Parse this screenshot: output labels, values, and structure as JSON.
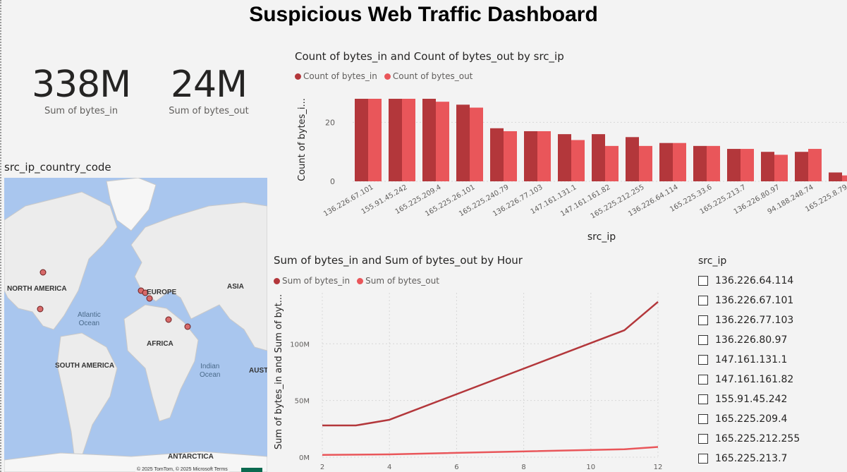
{
  "title": "Suspicious Web Traffic Dashboard",
  "kpis": [
    {
      "value": "338M",
      "label": "Sum of bytes_in"
    },
    {
      "value": "24M",
      "label": "Sum of bytes_out"
    }
  ],
  "map": {
    "title": "src_ip_country_code",
    "labels": {
      "north_america": "NORTH AMERICA",
      "europe": "EUROPE",
      "asia": "ASIA",
      "africa": "AFRICA",
      "south_america": "SOUTH AMERICA",
      "antarctica": "ANTARCTICA",
      "australia_partial": "AUST",
      "atlantic": "Atlantic",
      "atlantic_2": "Ocean",
      "indian": "Indian",
      "indian_2": "Ocean"
    },
    "copyright": "© 2025 TomTom, © 2025 Microsoft  Terms"
  },
  "colors": {
    "bytes_in": "#b3373b",
    "bytes_out": "#e9565a",
    "grid": "#d8d8d8",
    "axis_text": "#605e5c"
  },
  "chart_data": [
    {
      "type": "bar",
      "title": "Count of bytes_in and Count of bytes_out by src_ip",
      "xlabel": "src_ip",
      "ylabel": "Count of bytes_i...",
      "ylim": [
        0,
        30
      ],
      "yticks": [
        0,
        20
      ],
      "legend_position": "top-left",
      "categories": [
        "136.226.67.101",
        "155.91.45.242",
        "165.225.209.4",
        "165.225.26.101",
        "165.225.240.79",
        "136.226.77.103",
        "147.161.131.1",
        "147.161.161.82",
        "165.225.212.255",
        "136.226.64.114",
        "165.225.33.6",
        "165.225.213.7",
        "136.226.80.97",
        "94.188.248.74",
        "165.225.8.79"
      ],
      "series": [
        {
          "name": "Count of bytes_in",
          "values": [
            28,
            28,
            28,
            26,
            18,
            17,
            16,
            16,
            15,
            13,
            12,
            11,
            10,
            10,
            3
          ]
        },
        {
          "name": "Count of bytes_out",
          "values": [
            28,
            28,
            27,
            25,
            17,
            17,
            14,
            12,
            12,
            13,
            12,
            11,
            9,
            11,
            2
          ]
        }
      ]
    },
    {
      "type": "line",
      "title": "Sum of bytes_in and Sum of bytes_out by Hour",
      "xlabel": "",
      "ylabel": "Sum of bytes_in and Sum of byt...",
      "ylim": [
        0,
        140000000
      ],
      "xlim": [
        2,
        12
      ],
      "xticks": [
        2,
        4,
        6,
        8,
        10,
        12
      ],
      "yticks": [
        0,
        50000000,
        100000000
      ],
      "ytick_labels": [
        "0M",
        "50M",
        "100M"
      ],
      "legend_position": "top-left",
      "series": [
        {
          "name": "Sum of bytes_in",
          "x": [
            2,
            3,
            4,
            11,
            12
          ],
          "y": [
            28000000,
            28000000,
            33000000,
            112000000,
            137000000
          ]
        },
        {
          "name": "Sum of bytes_out",
          "x": [
            2,
            4,
            11,
            12
          ],
          "y": [
            2000000,
            2500000,
            7000000,
            9000000
          ]
        }
      ]
    }
  ],
  "slicer": {
    "title": "src_ip",
    "items": [
      "136.226.64.114",
      "136.226.67.101",
      "136.226.77.103",
      "136.226.80.97",
      "147.161.131.1",
      "147.161.161.82",
      "155.91.45.242",
      "165.225.209.4",
      "165.225.212.255",
      "165.225.213.7"
    ]
  }
}
